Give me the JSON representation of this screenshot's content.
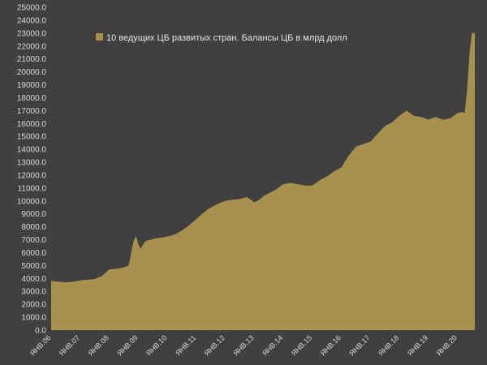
{
  "chart_data": {
    "type": "area",
    "legend_position": "top-left",
    "grid": {
      "x": false,
      "y": false
    },
    "ylim": [
      0,
      25000
    ],
    "y_ticks": [
      0,
      1000,
      2000,
      3000,
      4000,
      5000,
      6000,
      7000,
      8000,
      9000,
      10000,
      11000,
      12000,
      13000,
      14000,
      15000,
      16000,
      17000,
      18000,
      19000,
      20000,
      21000,
      22000,
      23000,
      24000,
      25000
    ],
    "y_tick_labels": [
      "0.0",
      "1000.0",
      "2000.0",
      "3000.0",
      "4000.0",
      "5000.0",
      "6000.0",
      "7000.0",
      "8000.0",
      "9000.0",
      "10000.0",
      "11000.0",
      "12000.0",
      "13000.0",
      "14000.0",
      "15000.0",
      "16000.0",
      "17000.0",
      "18000.0",
      "19000.0",
      "20000.0",
      "21000.0",
      "22000.0",
      "23000.0",
      "24000.0",
      "25000.0"
    ],
    "x_tick_labels": [
      "ЯНВ.06",
      "ЯНВ.07",
      "ЯНВ.08",
      "ЯНВ.09",
      "ЯНВ.10",
      "ЯНВ.11",
      "ЯНВ.12",
      "ЯНВ.13",
      "ЯНВ.14",
      "ЯНВ.15",
      "ЯНВ.16",
      "ЯНВ.17",
      "ЯНВ.18",
      "ЯНВ.19",
      "ЯНВ.20"
    ],
    "x_start_year": 2006,
    "x_end_year": 2020.6,
    "series": [
      {
        "name": "10 ведущих ЦБ развитых стран. Балансы ЦБ в млрд долл",
        "color": "#a8914f",
        "x": [
          2006.0,
          2006.25,
          2006.5,
          2006.75,
          2007.0,
          2007.25,
          2007.5,
          2007.75,
          2008.0,
          2008.25,
          2008.5,
          2008.67,
          2008.83,
          2008.92,
          2009.0,
          2009.08,
          2009.17,
          2009.25,
          2009.42,
          2009.58,
          2009.75,
          2010.0,
          2010.25,
          2010.5,
          2010.75,
          2011.0,
          2011.25,
          2011.5,
          2011.75,
          2012.0,
          2012.25,
          2012.5,
          2012.75,
          2013.0,
          2013.17,
          2013.33,
          2013.5,
          2013.75,
          2014.0,
          2014.25,
          2014.5,
          2014.75,
          2015.0,
          2015.25,
          2015.5,
          2015.75,
          2016.0,
          2016.25,
          2016.5,
          2016.75,
          2017.0,
          2017.25,
          2017.5,
          2017.75,
          2018.0,
          2018.25,
          2018.5,
          2018.75,
          2019.0,
          2019.25,
          2019.5,
          2019.75,
          2020.0,
          2020.17,
          2020.25,
          2020.33,
          2020.42,
          2020.5,
          2020.6
        ],
        "values": [
          3800,
          3750,
          3700,
          3750,
          3850,
          3900,
          3950,
          4200,
          4700,
          4750,
          4850,
          5000,
          6800,
          7300,
          6700,
          6300,
          6600,
          6900,
          7000,
          7100,
          7150,
          7250,
          7400,
          7700,
          8100,
          8600,
          9100,
          9500,
          9800,
          10000,
          10100,
          10150,
          10300,
          9900,
          10100,
          10400,
          10600,
          10900,
          11300,
          11400,
          11300,
          11200,
          11200,
          11600,
          11900,
          12300,
          12600,
          13500,
          14200,
          14400,
          14600,
          15200,
          15800,
          16100,
          16600,
          17000,
          16600,
          16500,
          16300,
          16500,
          16300,
          16400,
          16800,
          16900,
          16800,
          18500,
          21500,
          23000,
          23000
        ]
      }
    ]
  }
}
